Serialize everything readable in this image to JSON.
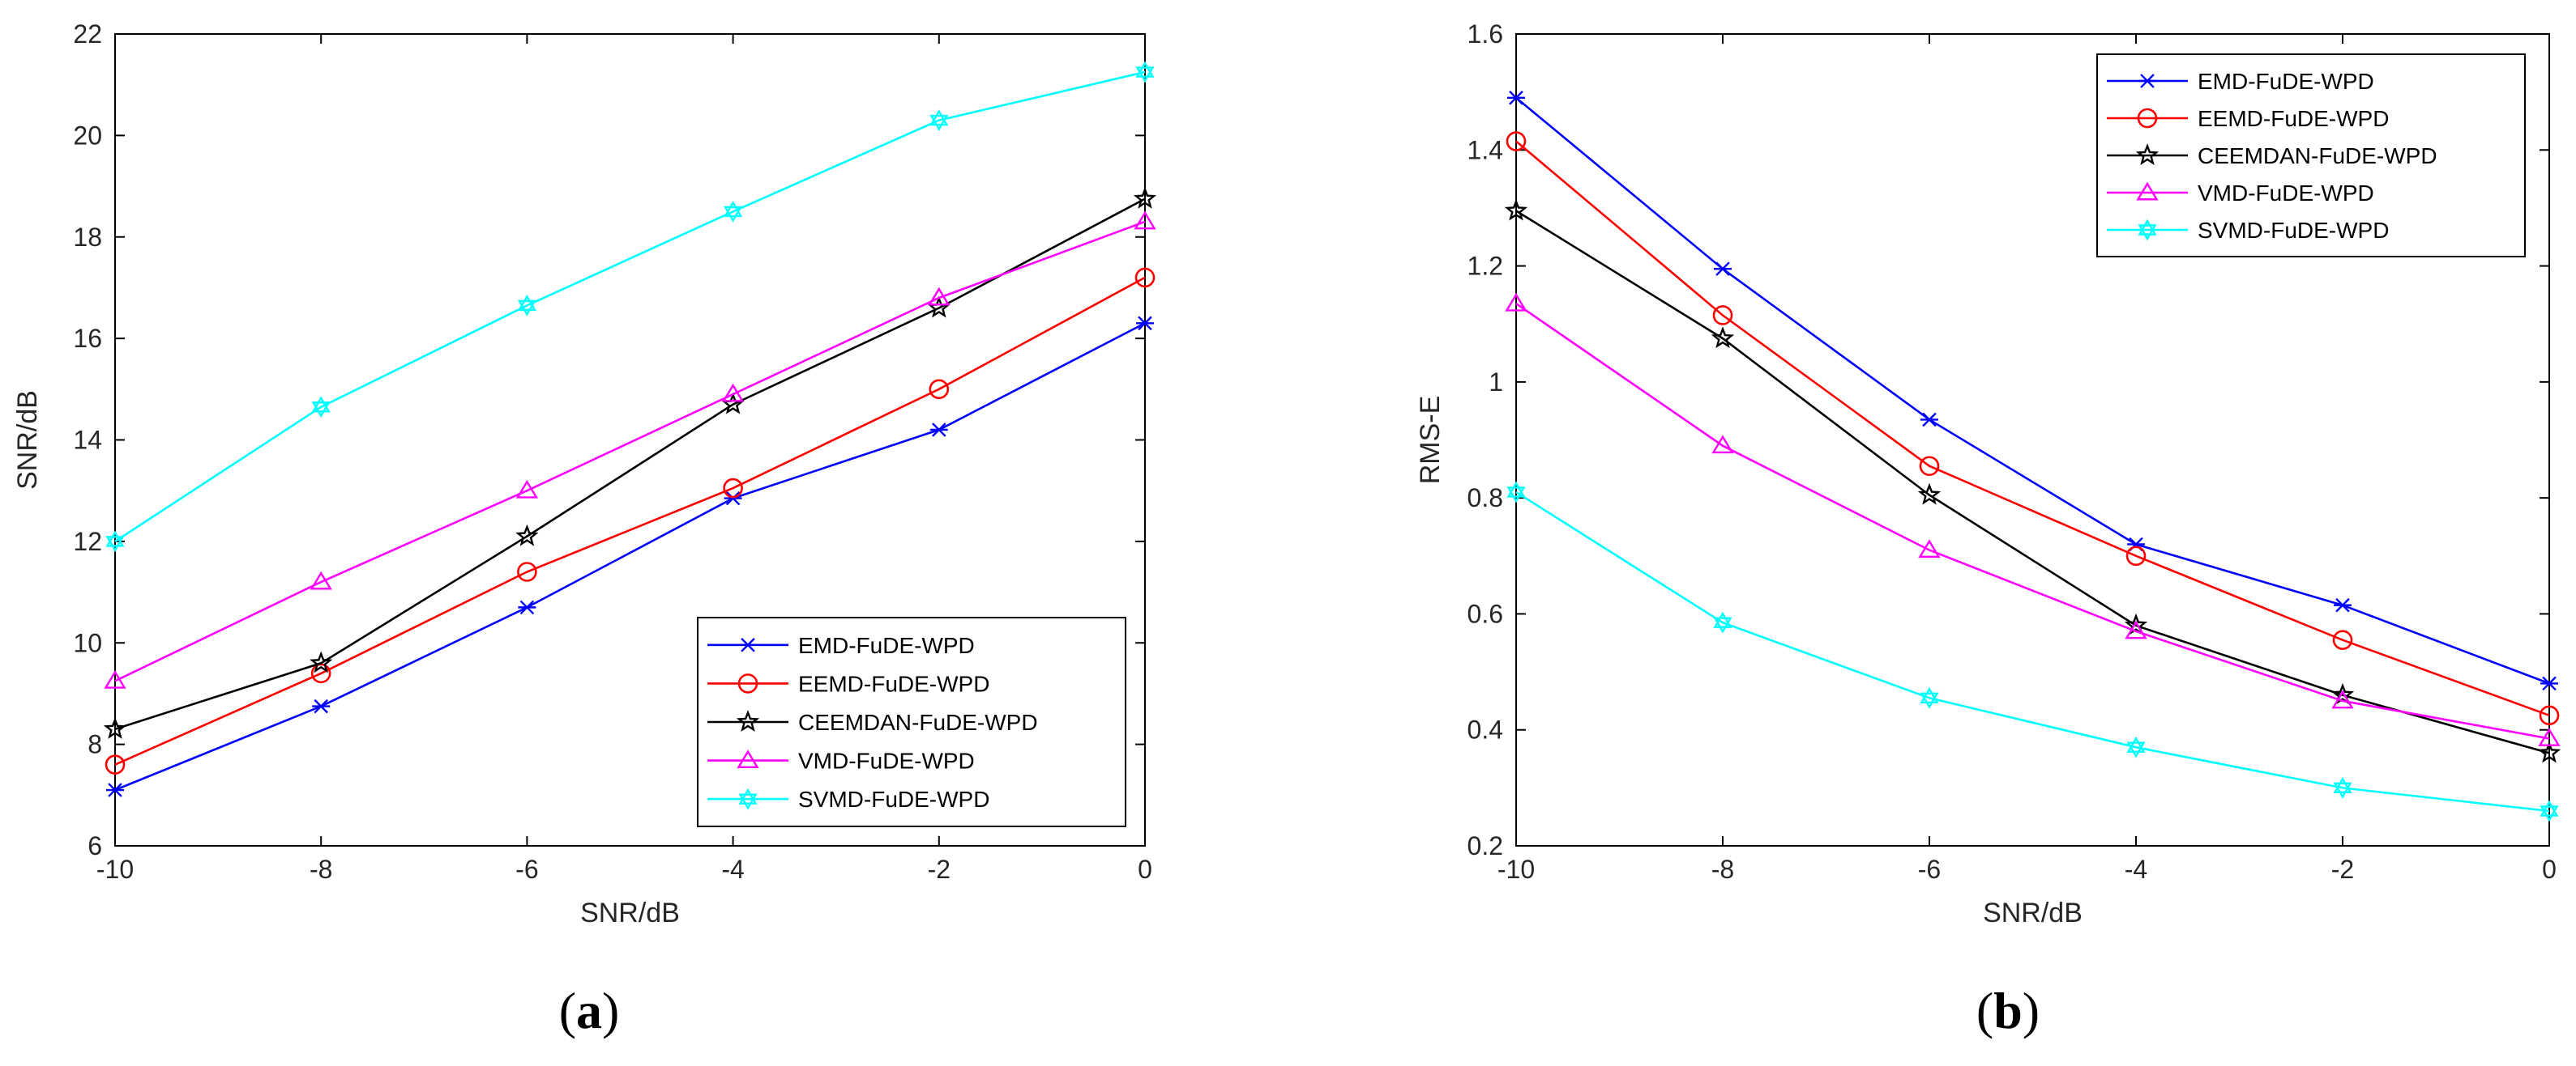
{
  "chart_data": [
    {
      "type": "line",
      "panel_label": "(a)",
      "panel_letter": "a",
      "title": "",
      "xlabel": "SNR/dB",
      "ylabel": "SNR/dB",
      "xlim": [
        -10,
        0
      ],
      "ylim": [
        6,
        22
      ],
      "xticks": [
        -10,
        -8,
        -6,
        -4,
        -2,
        0
      ],
      "xtick_labels": [
        "-10",
        "-8",
        "-6",
        "-4",
        "-2",
        "0"
      ],
      "yticks": [
        6,
        8,
        10,
        12,
        14,
        16,
        18,
        20,
        22
      ],
      "ytick_labels": [
        "6",
        "8",
        "10",
        "12",
        "14",
        "16",
        "18",
        "20",
        "22"
      ],
      "grid": false,
      "legend_position": "bottom-right",
      "x": [
        -10,
        -8,
        -6,
        -4,
        -2,
        0
      ],
      "series": [
        {
          "name": "EMD-FuDE-WPD",
          "color": "#0000ff",
          "marker": "asterisk",
          "values": [
            7.1,
            8.75,
            10.7,
            12.85,
            14.2,
            16.3
          ]
        },
        {
          "name": "EEMD-FuDE-WPD",
          "color": "#ff0000",
          "marker": "circle",
          "values": [
            7.6,
            9.4,
            11.4,
            13.05,
            15.0,
            17.2
          ]
        },
        {
          "name": "CEEMDAN-FuDE-WPD",
          "color": "#000000",
          "marker": "star",
          "values": [
            8.3,
            9.6,
            12.1,
            14.7,
            16.6,
            18.75
          ]
        },
        {
          "name": "VMD-FuDE-WPD",
          "color": "#ff00ff",
          "marker": "triangle",
          "values": [
            9.25,
            11.2,
            13.0,
            14.9,
            16.8,
            18.3
          ]
        },
        {
          "name": "SVMD-FuDE-WPD",
          "color": "#00ffff",
          "marker": "hexagram",
          "values": [
            12.0,
            14.65,
            16.65,
            18.5,
            20.3,
            21.25
          ]
        }
      ]
    },
    {
      "type": "line",
      "panel_label": "(b)",
      "panel_letter": "b",
      "title": "",
      "xlabel": "SNR/dB",
      "ylabel": "RMS-E",
      "xlim": [
        -10,
        0
      ],
      "ylim": [
        0.2,
        1.6
      ],
      "xticks": [
        -10,
        -8,
        -6,
        -4,
        -2,
        0
      ],
      "xtick_labels": [
        "-10",
        "-8",
        "-6",
        "-4",
        "-2",
        "0"
      ],
      "yticks": [
        0.2,
        0.4,
        0.6,
        0.8,
        1.0,
        1.2,
        1.4,
        1.6
      ],
      "ytick_labels": [
        "0.2",
        "0.4",
        "0.6",
        "0.8",
        "1",
        "1.2",
        "1.4",
        "1.6"
      ],
      "grid": false,
      "legend_position": "top-right",
      "x": [
        -10,
        -8,
        -6,
        -4,
        -2,
        0
      ],
      "series": [
        {
          "name": "EMD-FuDE-WPD",
          "color": "#0000ff",
          "marker": "asterisk",
          "values": [
            1.49,
            1.195,
            0.935,
            0.72,
            0.615,
            0.48
          ]
        },
        {
          "name": "EEMD-FuDE-WPD",
          "color": "#ff0000",
          "marker": "circle",
          "values": [
            1.415,
            1.115,
            0.855,
            0.7,
            0.555,
            0.425
          ]
        },
        {
          "name": "CEEMDAN-FuDE-WPD",
          "color": "#000000",
          "marker": "star",
          "values": [
            1.295,
            1.075,
            0.805,
            0.58,
            0.46,
            0.36
          ]
        },
        {
          "name": "VMD-FuDE-WPD",
          "color": "#ff00ff",
          "marker": "triangle",
          "values": [
            1.135,
            0.89,
            0.71,
            0.57,
            0.45,
            0.385
          ]
        },
        {
          "name": "SVMD-FuDE-WPD",
          "color": "#00ffff",
          "marker": "hexagram",
          "values": [
            0.81,
            0.585,
            0.455,
            0.37,
            0.3,
            0.26
          ]
        }
      ]
    }
  ]
}
